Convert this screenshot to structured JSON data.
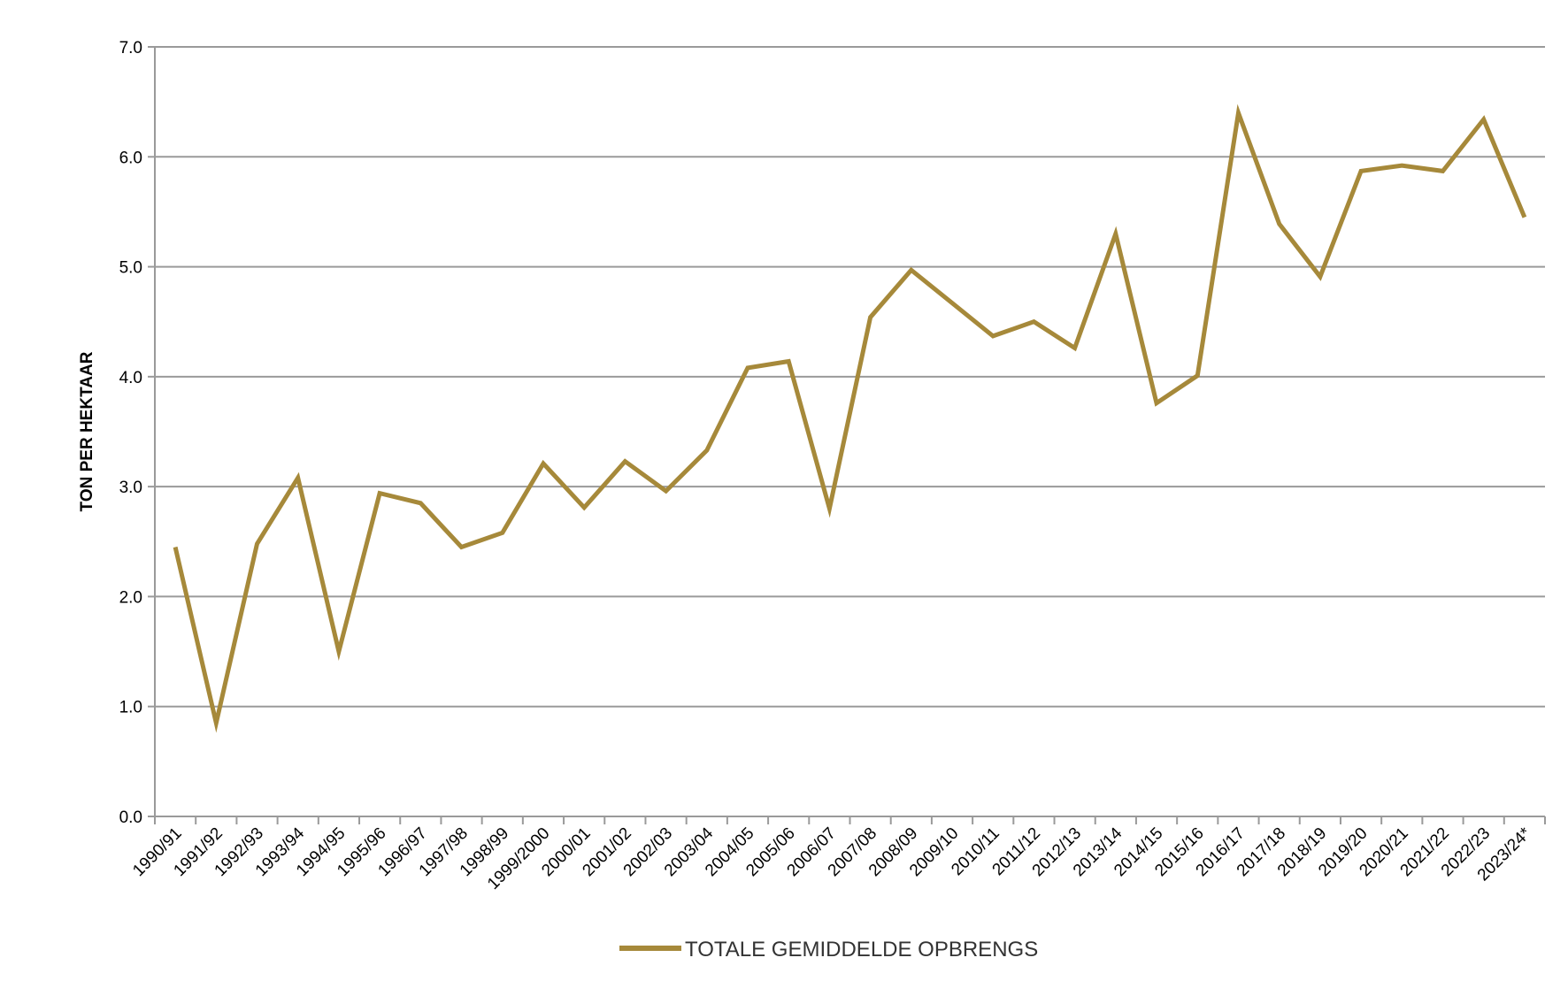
{
  "chart_data": {
    "type": "line",
    "title": "",
    "xlabel": "",
    "ylabel": "TON PER HEKTAAR",
    "ylim": [
      0,
      7
    ],
    "yticks": [
      "0.0",
      "1.0",
      "2.0",
      "3.0",
      "4.0",
      "5.0",
      "6.0",
      "7.0"
    ],
    "grid": true,
    "legend_position": "bottom",
    "categories": [
      "1990/91",
      "1991/92",
      "1992/93",
      "1993/94",
      "1994/95",
      "1995/96",
      "1996/97",
      "1997/98",
      "1998/99",
      "1999/2000",
      "2000/01",
      "2001/02",
      "2002/03",
      "2003/04",
      "2004/05",
      "2005/06",
      "2006/07",
      "2007/08",
      "2008/09",
      "2009/10",
      "2010/11",
      "2011/12",
      "2012/13",
      "2013/14",
      "2014/15",
      "2015/16",
      "2016/17",
      "2017/18",
      "2018/19",
      "2019/20",
      "2020/21",
      "2021/22",
      "2022/23",
      "2023/24*"
    ],
    "series": [
      {
        "name": "TOTALE GEMIDDELDE OPBRENGS",
        "color": "#A6893A",
        "values": [
          2.45,
          0.85,
          2.48,
          3.08,
          1.5,
          2.94,
          2.85,
          2.45,
          2.58,
          3.21,
          2.81,
          3.23,
          2.96,
          3.33,
          4.08,
          4.14,
          2.8,
          4.54,
          4.97,
          4.67,
          4.37,
          4.5,
          4.26,
          5.3,
          3.76,
          4.01,
          6.4,
          5.39,
          4.91,
          5.87,
          5.92,
          5.87,
          6.34,
          5.45
        ]
      }
    ]
  }
}
